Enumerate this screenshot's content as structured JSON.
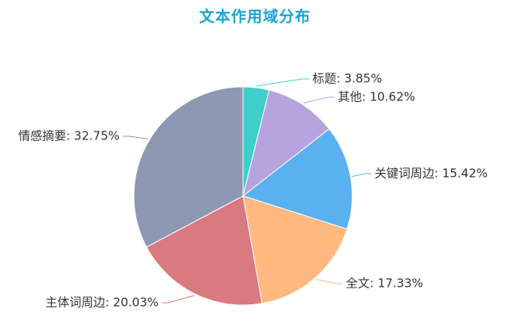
{
  "chart_data": {
    "type": "pie",
    "title": "文本作用域分布",
    "slices": [
      {
        "label": "标题",
        "value": 3.85,
        "display": "标题: 3.85%",
        "color": "#3ecfca"
      },
      {
        "label": "其他",
        "value": 10.62,
        "display": "其他: 10.62%",
        "color": "#b7a3de"
      },
      {
        "label": "关键词周边",
        "value": 15.42,
        "display": "关键词周边: 15.42%",
        "color": "#5ab1ef"
      },
      {
        "label": "全文",
        "value": 17.33,
        "display": "全文: 17.33%",
        "color": "#ffb980"
      },
      {
        "label": "主体词周边",
        "value": 20.03,
        "display": "主体词周边: 20.03%",
        "color": "#d87a80"
      },
      {
        "label": "情感摘要",
        "value": 32.75,
        "display": "情感摘要: 32.75%",
        "color": "#8d98b3"
      }
    ]
  }
}
